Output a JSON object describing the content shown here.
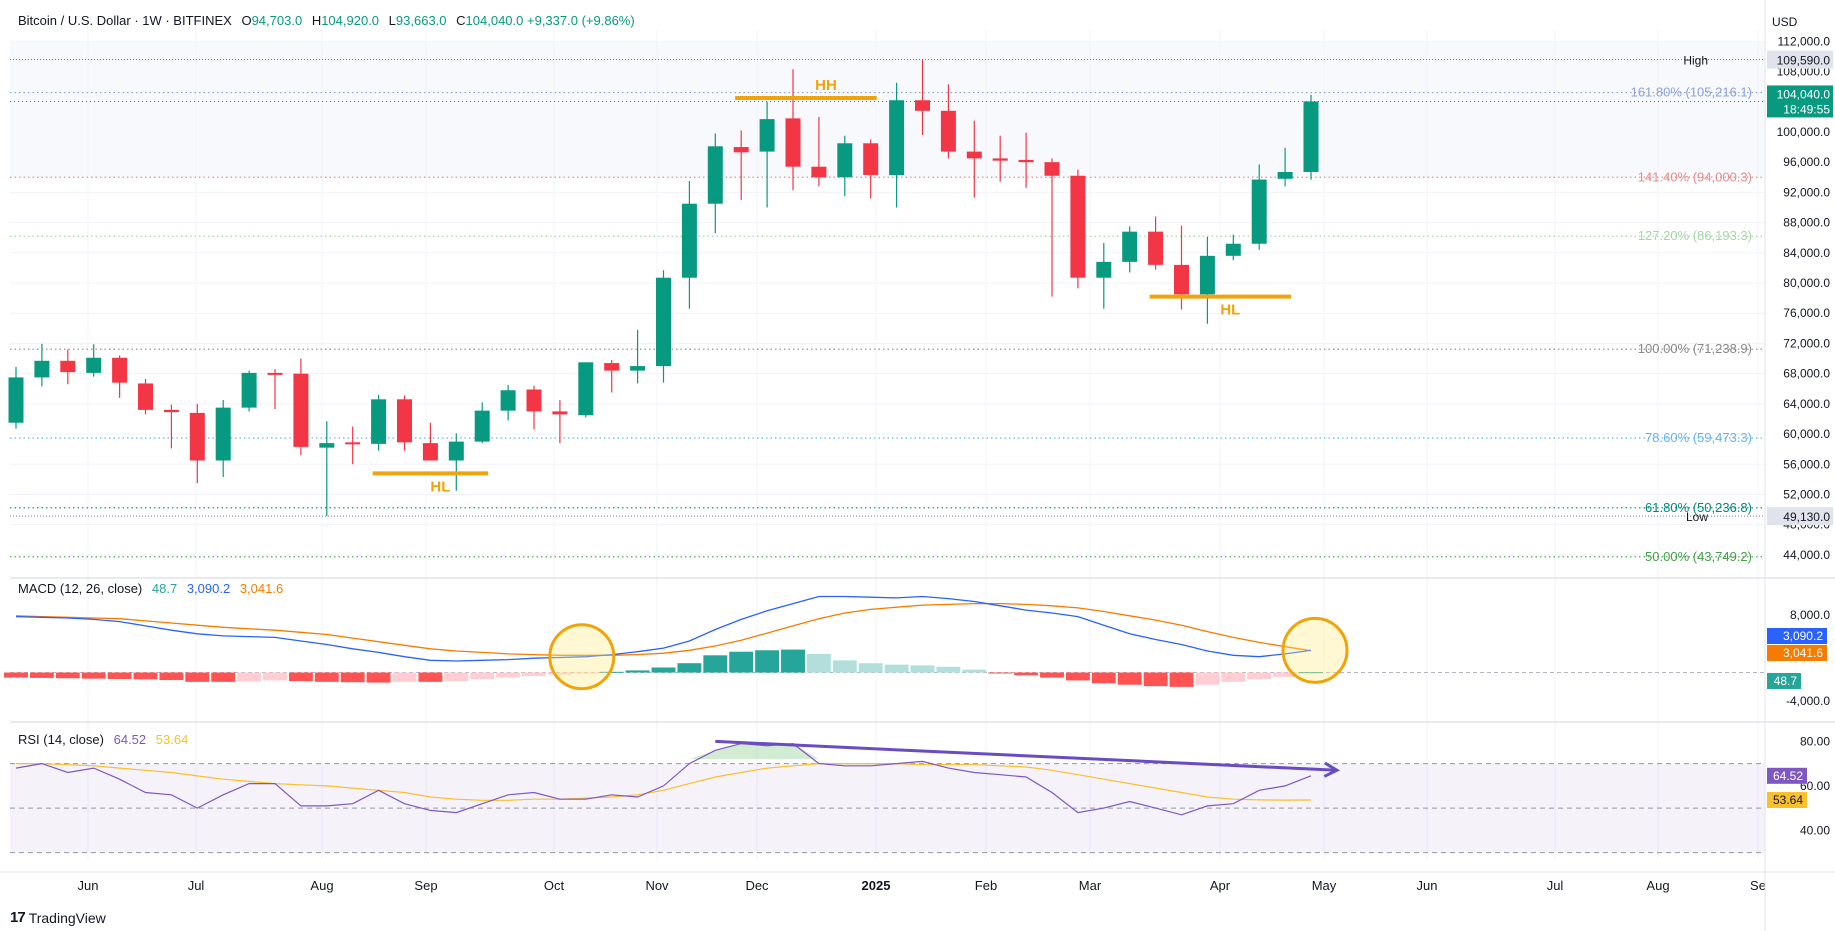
{
  "header": {
    "symbol": "Bitcoin / U.S. Dollar · 1W · BITFINEX",
    "open_label": "O",
    "open": "94,703.0",
    "high_label": "H",
    "high": "104,920.0",
    "low_label": "L",
    "low": "93,663.0",
    "close_label": "C",
    "close": "104,040.0",
    "change": "+9,337.0 (+9.86%)"
  },
  "currency": "USD",
  "colors": {
    "up": "#089981",
    "down": "#f23645",
    "macd": "#2962ff",
    "signal": "#f57c00",
    "rsi": "#7e57c2",
    "rsi_ma": "#f9c02b",
    "annot": "#f0a30a",
    "hist_up": "#26a69a",
    "hist_up_fade": "#b2dfdb",
    "hist_down": "#ff5252",
    "hist_down_fade": "#ffcdd2"
  },
  "brand": {
    "logo": "17",
    "name": "TradingView"
  },
  "chart_data": {
    "type": "candlestick",
    "price_axis": {
      "ylim": [
        42000,
        113500
      ],
      "ticks": [
        "112,000.0",
        "108,000.0",
        "100,000.0",
        "96,000.0",
        "92,000.0",
        "88,000.0",
        "84,000.0",
        "80,000.0",
        "76,000.0",
        "72,000.0",
        "68,000.0",
        "64,000.0",
        "60,000.0",
        "56,000.0",
        "52,000.0",
        "48,000.0",
        "44,000.0"
      ]
    },
    "time_axis": [
      "Jun",
      "Jul",
      "Aug",
      "Sep",
      "Oct",
      "Nov",
      "Dec",
      "2025",
      "Feb",
      "Mar",
      "Apr",
      "May",
      "Jun",
      "Jul",
      "Aug",
      "Se"
    ],
    "candles": [
      [
        61500,
        68900,
        60700,
        67500
      ],
      [
        67500,
        71950,
        66300,
        69700
      ],
      [
        69700,
        71200,
        66600,
        68200
      ],
      [
        68100,
        71900,
        67600,
        70100
      ],
      [
        70100,
        70400,
        64800,
        66800
      ],
      [
        66700,
        67300,
        62600,
        63200
      ],
      [
        63200,
        63900,
        58100,
        62900
      ],
      [
        62800,
        64000,
        53500,
        56500
      ],
      [
        56500,
        64500,
        54300,
        63500
      ],
      [
        63500,
        68400,
        63000,
        68100
      ],
      [
        68100,
        68600,
        63300,
        68000
      ],
      [
        68000,
        70000,
        57200,
        58300
      ],
      [
        58200,
        61700,
        49130,
        58800
      ],
      [
        58900,
        61000,
        56000,
        58700
      ],
      [
        58700,
        65200,
        57800,
        64600
      ],
      [
        64600,
        65100,
        57800,
        58900
      ],
      [
        58800,
        61500,
        56500,
        56500
      ],
      [
        56500,
        60100,
        52500,
        59000
      ],
      [
        59000,
        64200,
        58800,
        63100
      ],
      [
        63100,
        66500,
        61800,
        65800
      ],
      [
        65900,
        66400,
        60600,
        63000
      ],
      [
        63000,
        64500,
        58800,
        62600
      ],
      [
        62500,
        69500,
        62200,
        69500
      ],
      [
        69400,
        69800,
        65500,
        68400
      ],
      [
        68400,
        73800,
        66700,
        69000
      ],
      [
        69000,
        81700,
        66800,
        80700
      ],
      [
        80700,
        93500,
        76600,
        90500
      ],
      [
        90500,
        99800,
        86600,
        98100
      ],
      [
        98000,
        100200,
        91000,
        97300
      ],
      [
        97400,
        104000,
        90000,
        101700
      ],
      [
        101800,
        108300,
        92300,
        95400
      ],
      [
        95400,
        102000,
        92800,
        94000
      ],
      [
        94000,
        99500,
        91500,
        98500
      ],
      [
        98500,
        99000,
        91200,
        94300
      ],
      [
        94300,
        106500,
        90000,
        104200
      ],
      [
        104200,
        109590,
        99600,
        102800
      ],
      [
        102800,
        106300,
        96500,
        97400
      ],
      [
        97400,
        101500,
        91300,
        96500
      ],
      [
        96500,
        99500,
        93400,
        96200
      ],
      [
        96300,
        99900,
        92600,
        96000
      ],
      [
        96000,
        96500,
        78200,
        94200
      ],
      [
        94200,
        95000,
        79300,
        80700
      ],
      [
        80700,
        85300,
        76600,
        82800
      ],
      [
        82800,
        87500,
        81400,
        86800
      ],
      [
        86800,
        88800,
        81800,
        82400
      ],
      [
        82400,
        87600,
        76500,
        78500
      ],
      [
        78500,
        86100,
        74600,
        83600
      ],
      [
        83600,
        86400,
        83000,
        85200
      ],
      [
        85200,
        95700,
        84400,
        93700
      ],
      [
        93800,
        97900,
        92800,
        94700
      ],
      [
        94703,
        104920,
        93663,
        104040
      ]
    ],
    "fib_levels": [
      {
        "label": "161.80% (105,216.1)",
        "value": 105216.1,
        "color": "#8ea1d9"
      },
      {
        "label": "141.40% (94,000.3)",
        "value": 94000.3,
        "color": "#e88a8a"
      },
      {
        "label": "127.20% (86,193.3)",
        "value": 86193.3,
        "color": "#a5d6a7"
      },
      {
        "label": "100.00% (71,238.9)",
        "value": 71238.9,
        "color": "#888888"
      },
      {
        "label": "78.60% (59,473.3)",
        "value": 59473.3,
        "color": "#64b5f6"
      },
      {
        "label": "61.80% (50,236.8)",
        "value": 50236.8,
        "color": "#00897b"
      },
      {
        "label": "50.00% (43,749.2)",
        "value": 43749.2,
        "color": "#43a047"
      }
    ],
    "high_label": "High",
    "high_value": "109,590.0",
    "low_label": "Low",
    "low_value": "49,130.0",
    "last_price": "104,040.0",
    "countdown": "18:49:55",
    "annotations": [
      {
        "text": "HH",
        "candle_from": 28,
        "candle_to": 33,
        "price": 104500
      },
      {
        "text": "HL",
        "candle_from": 14,
        "candle_to": 18,
        "price": 54800
      },
      {
        "text": "HL",
        "candle_from": 44,
        "candle_to": 49,
        "price": 78200
      }
    ],
    "macd": {
      "title": "MACD (12, 26, close)",
      "hist_value": "48.7",
      "macd_value": "3,090.2",
      "signal_value": "3,041.6",
      "ylim": [
        -5500,
        11500
      ],
      "ticks": [
        "8,000.0",
        "-4,000.0"
      ],
      "hist": [
        -700,
        -750,
        -800,
        -850,
        -900,
        -950,
        -1050,
        -1300,
        -1300,
        -1250,
        -1100,
        -1200,
        -1300,
        -1350,
        -1400,
        -1300,
        -1300,
        -1200,
        -900,
        -700,
        -500,
        -300,
        -100,
        100,
        300,
        700,
        1300,
        2400,
        2900,
        3100,
        3200,
        2600,
        1700,
        1300,
        1100,
        1000,
        800,
        400,
        -100,
        -400,
        -700,
        -1100,
        -1500,
        -1700,
        -1900,
        -2000,
        -1700,
        -1300,
        -900,
        -600,
        48.7
      ],
      "macd": [
        7800,
        7700,
        7600,
        7400,
        7100,
        6500,
        5900,
        5400,
        5100,
        5000,
        4900,
        4400,
        3900,
        3300,
        2800,
        2200,
        1700,
        1600,
        1700,
        1800,
        2000,
        2100,
        2200,
        2500,
        2900,
        3400,
        4400,
        6000,
        7400,
        8600,
        9600,
        10600,
        10600,
        10500,
        10400,
        10600,
        10300,
        9900,
        9300,
        8700,
        8300,
        7800,
        6600,
        5400,
        4600,
        3900,
        3000,
        2400,
        2200,
        2600,
        3090.2
      ],
      "signal": [
        7900,
        7800,
        7700,
        7600,
        7500,
        7200,
        6900,
        6600,
        6300,
        6100,
        5900,
        5600,
        5300,
        4800,
        4300,
        3800,
        3300,
        3000,
        2800,
        2600,
        2500,
        2400,
        2400,
        2400,
        2500,
        2700,
        3100,
        3700,
        4500,
        5500,
        6500,
        7500,
        8300,
        8800,
        9100,
        9400,
        9500,
        9600,
        9600,
        9500,
        9300,
        9000,
        8500,
        7900,
        7300,
        6600,
        5700,
        4900,
        4200,
        3600,
        3041.6
      ],
      "circles": [
        22,
        50
      ]
    },
    "rsi": {
      "title": "RSI (14, close)",
      "value": "64.52",
      "ma_value": "53.64",
      "ylim": [
        24,
        86
      ],
      "ticks": [
        "80.00",
        "60.00",
        "40.00"
      ],
      "band": [
        30,
        70
      ],
      "rsi": [
        68,
        70,
        66,
        68,
        63,
        57,
        56,
        50,
        56,
        61,
        61,
        51,
        51,
        52,
        58,
        52,
        49,
        48,
        52,
        56,
        57,
        54,
        54,
        56,
        55,
        60,
        70,
        76,
        79,
        78,
        79,
        70,
        69,
        69,
        70,
        71,
        68,
        66,
        65,
        64,
        57,
        48,
        50,
        53,
        50,
        47,
        51,
        52,
        58,
        60,
        64.52
      ],
      "ma": [
        70,
        70,
        69.5,
        69,
        68,
        67,
        66,
        64.5,
        63,
        62,
        61,
        60.5,
        60,
        59,
        58,
        57,
        55,
        54,
        53.5,
        53.5,
        54,
        54,
        54.5,
        55,
        56,
        58,
        61,
        64,
        66,
        68,
        69,
        70,
        70,
        70,
        70,
        69.5,
        69.5,
        69.5,
        69,
        68.5,
        67,
        65,
        63,
        61,
        59,
        57,
        55,
        54,
        53.7,
        53.6,
        53.64
      ],
      "divergence": {
        "from": [
          27,
          80
        ],
        "to": [
          51,
          67
        ]
      }
    }
  }
}
